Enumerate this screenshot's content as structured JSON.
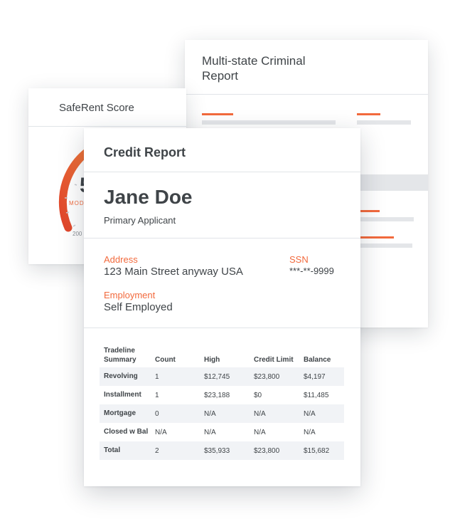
{
  "criminal_report": {
    "title": "Multi-state Criminal Report"
  },
  "saferent_score": {
    "title": "SafeRent Score",
    "score_partial": "5",
    "band_partial": "MOD",
    "min_label_partial": "200"
  },
  "credit_report": {
    "title": "Credit Report",
    "applicant_name": "Jane Doe",
    "applicant_role": "Primary Applicant",
    "address_label": "Address",
    "address_value": "123 Main Street anyway USA",
    "ssn_label": "SSN",
    "ssn_value": "***-**-9999",
    "employment_label": "Employment",
    "employment_value": "Self Employed",
    "tradeline": {
      "headers": [
        "Tradeline Summary",
        "Count",
        "High",
        "Credit Limit",
        "Balance"
      ],
      "rows": [
        [
          "Revolving",
          "1",
          "$12,745",
          "$23,800",
          "$4,197"
        ],
        [
          "Installment",
          "1",
          "$23,188",
          "$0",
          "$11,485"
        ],
        [
          "Mortgage",
          "0",
          "N/A",
          "N/A",
          "N/A"
        ],
        [
          "Closed w Bal",
          "N/A",
          "N/A",
          "N/A",
          "N/A"
        ],
        [
          "Total",
          "2",
          "$35,933",
          "$23,800",
          "$15,682"
        ]
      ]
    }
  },
  "colors": {
    "accent": "#f26a3d",
    "text": "#3f4448",
    "divider": "#e1e4e8",
    "placeholder": "#e4e6e9",
    "row_shade": "#f1f3f6"
  }
}
